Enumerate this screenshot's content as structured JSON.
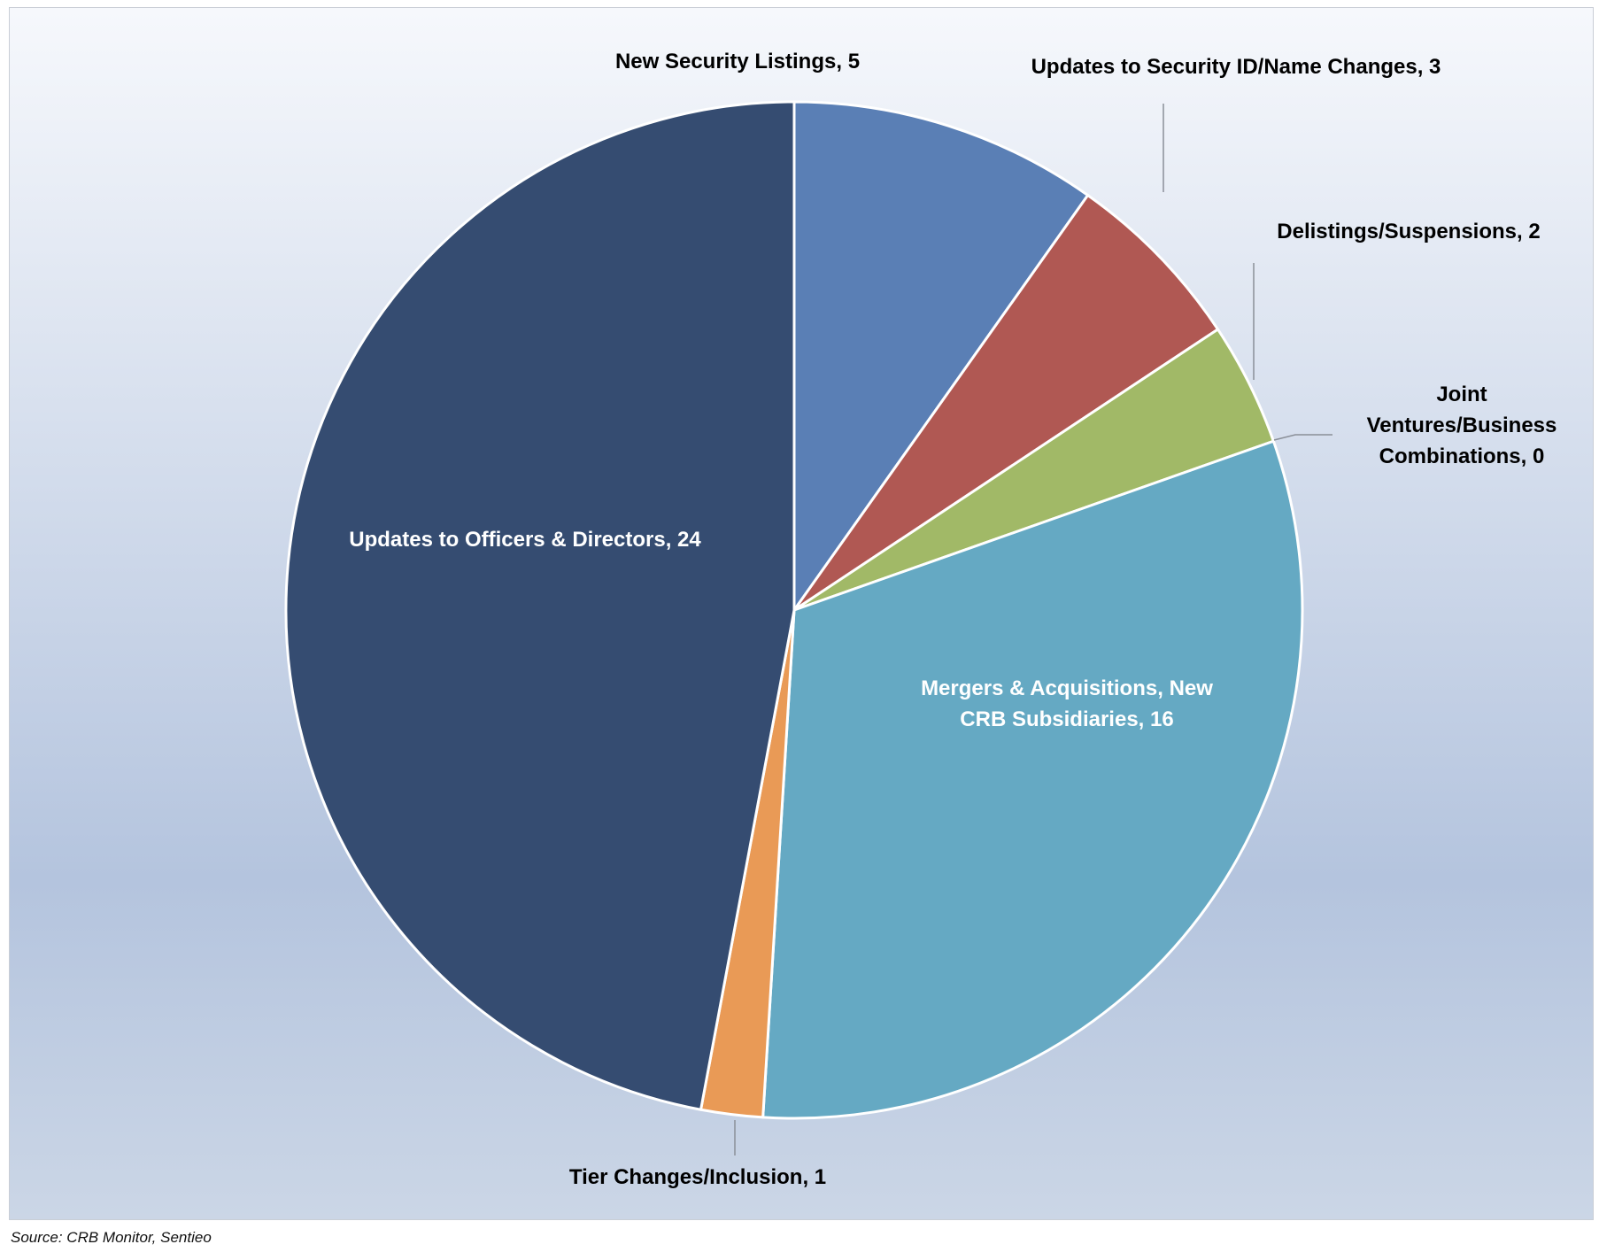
{
  "chart_data": {
    "type": "pie",
    "title": "",
    "start_angle_deg": 0,
    "direction": "clockwise",
    "slices": [
      {
        "label": "New Security Listings",
        "value": 5,
        "color": "#5a7fb5",
        "display": "New Security Listings, 5"
      },
      {
        "label": "Updates to Security ID/Name Changes",
        "value": 3,
        "color": "#b05853",
        "display": "Updates to Security ID/Name Changes, 3"
      },
      {
        "label": "Delistings/Suspensions",
        "value": 2,
        "color": "#a1b967",
        "display": "Delistings/Suspensions, 2"
      },
      {
        "label": "Joint Ventures/Business Combinations",
        "value": 0,
        "color": "#7f68a0",
        "display_lines": [
          "Joint",
          "Ventures/Business",
          "Combinations, 0"
        ]
      },
      {
        "label": "Mergers & Acquisitions, New CRB Subsidiaries",
        "value": 16,
        "color": "#65a9c3",
        "display_lines": [
          "Mergers & Acquisitions, New",
          "CRB Subsidiaries, 16"
        ]
      },
      {
        "label": "Tier Changes/Inclusion",
        "value": 1,
        "color": "#e99a56",
        "display": "Tier Changes/Inclusion, 1"
      },
      {
        "label": "Updates to Officers & Directors",
        "value": 24,
        "color": "#354c71",
        "display": "Updates to Officers & Directors, 24"
      }
    ],
    "background_gradient": [
      "#f6f8fc",
      "#b4c4de",
      "#cbd6e6"
    ]
  },
  "source": "Source: CRB Monitor, Sentieo"
}
